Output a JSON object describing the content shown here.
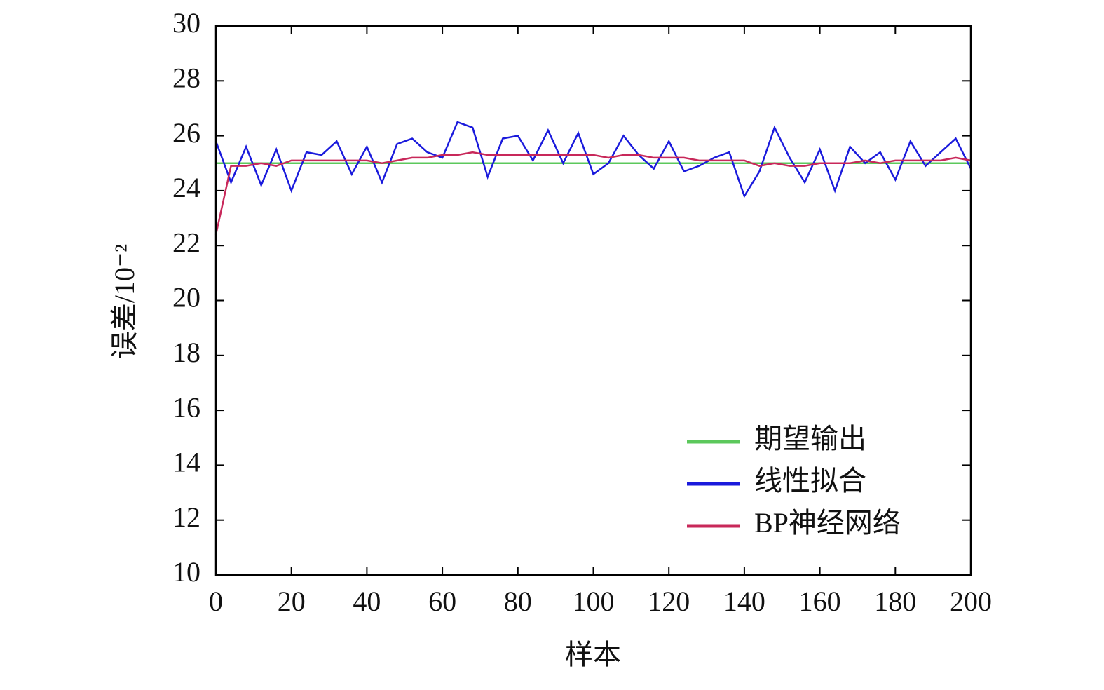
{
  "chart_data": {
    "type": "line",
    "xlabel": "样本",
    "ylabel": "误差/10⁻²",
    "x": [
      0,
      4,
      8,
      12,
      16,
      20,
      24,
      28,
      32,
      36,
      40,
      44,
      48,
      52,
      56,
      60,
      64,
      68,
      72,
      76,
      80,
      84,
      88,
      92,
      96,
      100,
      104,
      108,
      112,
      116,
      120,
      124,
      128,
      132,
      136,
      140,
      144,
      148,
      152,
      156,
      160,
      164,
      168,
      172,
      176,
      180,
      184,
      188,
      192,
      196,
      200
    ],
    "series": [
      {
        "name": "期望输出",
        "color": "#5cc85c",
        "values": [
          25,
          25,
          25,
          25,
          25,
          25,
          25,
          25,
          25,
          25,
          25,
          25,
          25,
          25,
          25,
          25,
          25,
          25,
          25,
          25,
          25,
          25,
          25,
          25,
          25,
          25,
          25,
          25,
          25,
          25,
          25,
          25,
          25,
          25,
          25,
          25,
          25,
          25,
          25,
          25,
          25,
          25,
          25,
          25,
          25,
          25,
          25,
          25,
          25,
          25,
          25
        ]
      },
      {
        "name": "线性拟合",
        "color": "#1a1adc",
        "values": [
          25.8,
          24.3,
          25.6,
          24.2,
          25.5,
          24.0,
          25.4,
          25.3,
          25.8,
          24.6,
          25.6,
          24.3,
          25.7,
          25.9,
          25.4,
          25.2,
          26.5,
          26.3,
          24.5,
          25.9,
          26.0,
          25.1,
          26.2,
          25.0,
          26.1,
          24.6,
          25.0,
          26.0,
          25.3,
          24.8,
          25.8,
          24.7,
          24.9,
          25.2,
          25.4,
          23.8,
          24.7,
          26.3,
          25.2,
          24.3,
          25.5,
          24.0,
          25.6,
          25.0,
          25.4,
          24.4,
          25.8,
          24.9,
          25.4,
          25.9,
          24.8
        ]
      },
      {
        "name": "BP神经网络",
        "color": "#c8285a",
        "values": [
          22.4,
          24.9,
          24.9,
          25.0,
          24.9,
          25.1,
          25.1,
          25.1,
          25.1,
          25.1,
          25.1,
          25.0,
          25.1,
          25.2,
          25.2,
          25.3,
          25.3,
          25.4,
          25.3,
          25.3,
          25.3,
          25.3,
          25.3,
          25.3,
          25.3,
          25.3,
          25.2,
          25.3,
          25.3,
          25.2,
          25.2,
          25.2,
          25.1,
          25.1,
          25.1,
          25.1,
          24.9,
          25.0,
          24.9,
          24.9,
          25.0,
          25.0,
          25.0,
          25.1,
          25.0,
          25.1,
          25.1,
          25.1,
          25.1,
          25.2,
          25.1
        ]
      }
    ],
    "xlim": [
      0,
      200
    ],
    "xticks": [
      0,
      20,
      40,
      60,
      80,
      100,
      120,
      140,
      160,
      180,
      200
    ],
    "ylim": [
      10,
      30
    ],
    "yticks": [
      10,
      12,
      14,
      16,
      18,
      20,
      22,
      24,
      26,
      28,
      30
    ],
    "legend": "lower right"
  }
}
